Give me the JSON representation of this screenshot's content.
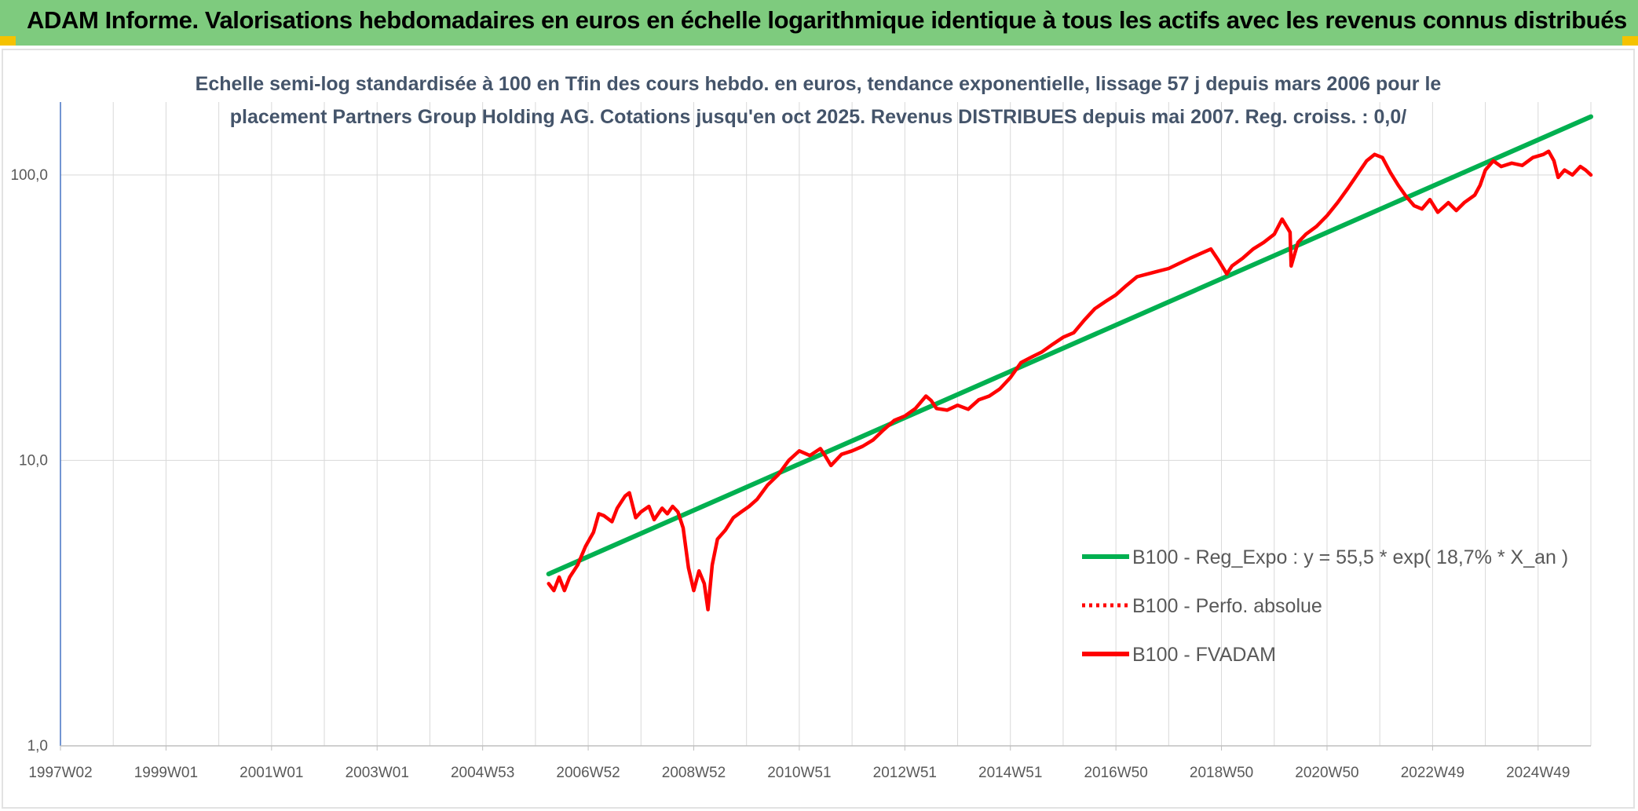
{
  "banner": {
    "title": "ADAM Informe. Valorisations hebdomadaires en euros en échelle logarithmique identique à tous les actifs avec les revenus connus distribués"
  },
  "colors": {
    "banner_bg": "#7ecb7e",
    "regression": "#00b050",
    "fvadam": "#ff0000",
    "perfo": "#ff0000",
    "grid": "#d9d9d9",
    "axis": "#4472c4"
  },
  "chart_data": {
    "type": "line",
    "title_lines": [
      "Echelle semi-log standardisée à 100 en Tfin des cours hebdo. en euros, tendance exponentielle, lissage 57 j depuis mars 2006 pour le",
      "placement Partners Group Holding AG. Cotations jusqu'en oct 2025. Revenus DISTRIBUES depuis mai 2007. Reg. croiss. : 0,0/"
    ],
    "y_scale": "log",
    "ylim": [
      1,
      180
    ],
    "y_ticks": [
      {
        "value": 1,
        "label": "1,0"
      },
      {
        "value": 10,
        "label": "10,0"
      },
      {
        "value": 100,
        "label": "100,0"
      }
    ],
    "xlim": [
      1997.0,
      2026.0
    ],
    "x_ticks": [
      {
        "value": 1997.0,
        "label": "1997W02"
      },
      {
        "value": 1999.0,
        "label": "1999W01"
      },
      {
        "value": 2001.0,
        "label": "2001W01"
      },
      {
        "value": 2003.0,
        "label": "2003W01"
      },
      {
        "value": 2005.0,
        "label": "2004W53"
      },
      {
        "value": 2007.0,
        "label": "2006W52"
      },
      {
        "value": 2009.0,
        "label": "2008W52"
      },
      {
        "value": 2011.0,
        "label": "2010W51"
      },
      {
        "value": 2013.0,
        "label": "2012W51"
      },
      {
        "value": 2015.0,
        "label": "2014W51"
      },
      {
        "value": 2017.0,
        "label": "2016W50"
      },
      {
        "value": 2019.0,
        "label": "2018W50"
      },
      {
        "value": 2021.0,
        "label": "2020W50"
      },
      {
        "value": 2023.0,
        "label": "2022W49"
      },
      {
        "value": 2025.0,
        "label": "2024W49"
      }
    ],
    "grid": true,
    "legend_position": "lower-right",
    "series": [
      {
        "name": "B100 - Reg_Expo : y = 55,5 * exp( 18,7% *  X_an )",
        "style": "solid",
        "color": "#00b050",
        "points": [
          [
            2006.25,
            4.0
          ],
          [
            2026.0,
            160.0
          ]
        ]
      },
      {
        "name": "B100 - Perfo. absolue",
        "style": "dotted",
        "color": "#ff0000",
        "points": []
      },
      {
        "name": "B100 - FVADAM",
        "style": "solid",
        "color": "#ff0000",
        "points": [
          [
            2006.25,
            3.7
          ],
          [
            2006.35,
            3.5
          ],
          [
            2006.45,
            3.9
          ],
          [
            2006.55,
            3.5
          ],
          [
            2006.65,
            3.9
          ],
          [
            2006.8,
            4.3
          ],
          [
            2006.95,
            5.0
          ],
          [
            2007.1,
            5.6
          ],
          [
            2007.2,
            6.5
          ],
          [
            2007.3,
            6.4
          ],
          [
            2007.45,
            6.1
          ],
          [
            2007.55,
            6.8
          ],
          [
            2007.7,
            7.5
          ],
          [
            2007.78,
            7.7
          ],
          [
            2007.9,
            6.3
          ],
          [
            2008.0,
            6.6
          ],
          [
            2008.15,
            6.9
          ],
          [
            2008.25,
            6.2
          ],
          [
            2008.4,
            6.8
          ],
          [
            2008.5,
            6.5
          ],
          [
            2008.6,
            6.9
          ],
          [
            2008.7,
            6.6
          ],
          [
            2008.8,
            5.8
          ],
          [
            2008.9,
            4.2
          ],
          [
            2009.0,
            3.5
          ],
          [
            2009.1,
            4.1
          ],
          [
            2009.2,
            3.7
          ],
          [
            2009.27,
            3.0
          ],
          [
            2009.35,
            4.3
          ],
          [
            2009.45,
            5.3
          ],
          [
            2009.6,
            5.7
          ],
          [
            2009.75,
            6.3
          ],
          [
            2009.9,
            6.6
          ],
          [
            2010.05,
            6.9
          ],
          [
            2010.2,
            7.3
          ],
          [
            2010.4,
            8.2
          ],
          [
            2010.6,
            8.9
          ],
          [
            2010.8,
            10.0
          ],
          [
            2011.0,
            10.8
          ],
          [
            2011.2,
            10.4
          ],
          [
            2011.4,
            11.0
          ],
          [
            2011.5,
            10.3
          ],
          [
            2011.6,
            9.6
          ],
          [
            2011.8,
            10.5
          ],
          [
            2012.0,
            10.8
          ],
          [
            2012.2,
            11.2
          ],
          [
            2012.4,
            11.8
          ],
          [
            2012.6,
            12.8
          ],
          [
            2012.8,
            13.8
          ],
          [
            2013.0,
            14.3
          ],
          [
            2013.2,
            15.2
          ],
          [
            2013.4,
            16.8
          ],
          [
            2013.5,
            16.2
          ],
          [
            2013.6,
            15.2
          ],
          [
            2013.8,
            15.0
          ],
          [
            2014.0,
            15.6
          ],
          [
            2014.2,
            15.1
          ],
          [
            2014.4,
            16.3
          ],
          [
            2014.6,
            16.8
          ],
          [
            2014.8,
            17.8
          ],
          [
            2015.0,
            19.5
          ],
          [
            2015.2,
            22.0
          ],
          [
            2015.4,
            23.0
          ],
          [
            2015.6,
            24.0
          ],
          [
            2015.8,
            25.5
          ],
          [
            2016.0,
            27.0
          ],
          [
            2016.2,
            28.0
          ],
          [
            2016.4,
            31.0
          ],
          [
            2016.6,
            34.0
          ],
          [
            2016.8,
            36.0
          ],
          [
            2017.0,
            38.0
          ],
          [
            2017.2,
            41.0
          ],
          [
            2017.4,
            44.0
          ],
          [
            2017.6,
            45.0
          ],
          [
            2017.8,
            46.0
          ],
          [
            2018.0,
            47.0
          ],
          [
            2018.2,
            49.0
          ],
          [
            2018.4,
            51.0
          ],
          [
            2018.6,
            53.0
          ],
          [
            2018.8,
            55.0
          ],
          [
            2018.95,
            50.0
          ],
          [
            2019.1,
            45.0
          ],
          [
            2019.2,
            48.0
          ],
          [
            2019.4,
            51.0
          ],
          [
            2019.6,
            55.0
          ],
          [
            2019.8,
            58.0
          ],
          [
            2020.0,
            62.0
          ],
          [
            2020.15,
            70.0
          ],
          [
            2020.3,
            63.0
          ],
          [
            2020.32,
            48.0
          ],
          [
            2020.45,
            58.0
          ],
          [
            2020.6,
            62.0
          ],
          [
            2020.8,
            66.0
          ],
          [
            2021.0,
            72.0
          ],
          [
            2021.2,
            80.0
          ],
          [
            2021.4,
            90.0
          ],
          [
            2021.6,
            102.0
          ],
          [
            2021.75,
            112.0
          ],
          [
            2021.9,
            118.0
          ],
          [
            2022.05,
            115.0
          ],
          [
            2022.2,
            102.0
          ],
          [
            2022.35,
            92.0
          ],
          [
            2022.5,
            84.0
          ],
          [
            2022.65,
            78.0
          ],
          [
            2022.8,
            76.0
          ],
          [
            2022.95,
            82.0
          ],
          [
            2023.1,
            74.0
          ],
          [
            2023.3,
            80.0
          ],
          [
            2023.45,
            75.0
          ],
          [
            2023.6,
            80.0
          ],
          [
            2023.8,
            85.0
          ],
          [
            2023.9,
            92.0
          ],
          [
            2024.0,
            104.0
          ],
          [
            2024.15,
            112.0
          ],
          [
            2024.3,
            107.0
          ],
          [
            2024.5,
            110.0
          ],
          [
            2024.7,
            108.0
          ],
          [
            2024.9,
            115.0
          ],
          [
            2025.1,
            118.0
          ],
          [
            2025.2,
            121.0
          ],
          [
            2025.3,
            112.0
          ],
          [
            2025.38,
            98.0
          ],
          [
            2025.5,
            104.0
          ],
          [
            2025.65,
            100.0
          ],
          [
            2025.8,
            107.0
          ],
          [
            2025.9,
            104.0
          ],
          [
            2026.0,
            100.0
          ]
        ]
      }
    ]
  }
}
